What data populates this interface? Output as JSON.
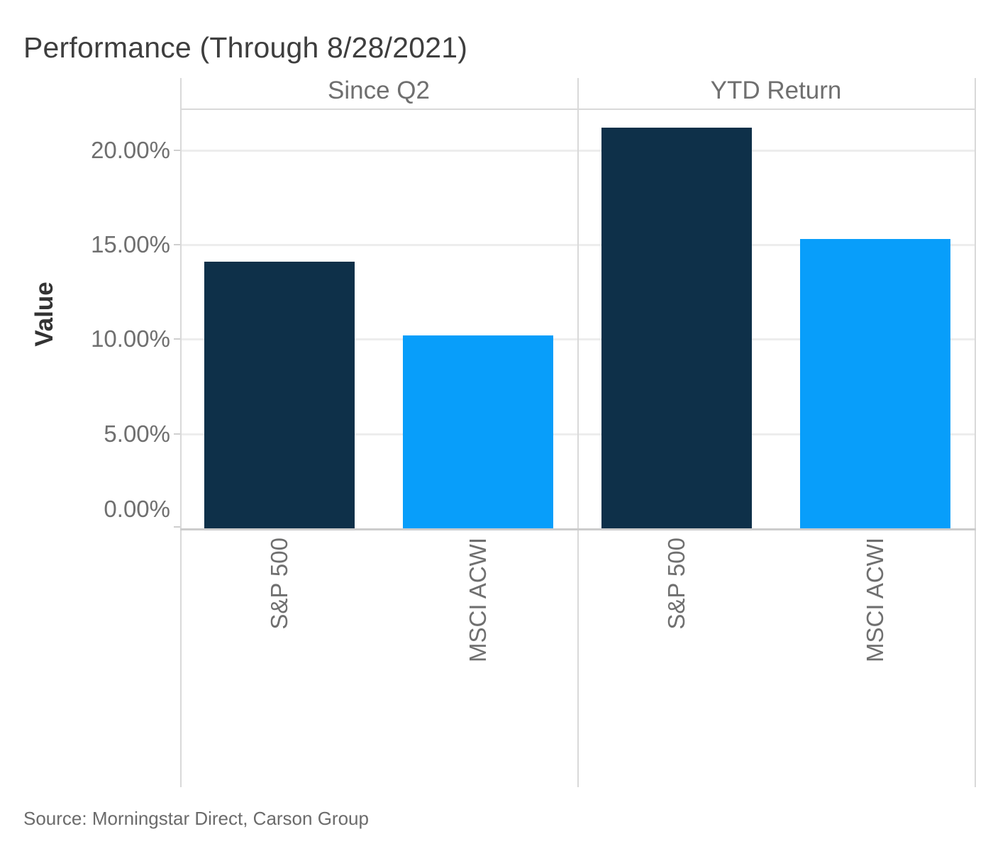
{
  "title": "Performance (Through 8/28/2021)",
  "source": "Source: Morningstar Direct, Carson Group",
  "chart_data": {
    "type": "bar",
    "title": "Performance (Through 8/28/2021)",
    "subtitle": "",
    "xlabel": "",
    "ylabel": "Value",
    "ylim": [
      0,
      22.1
    ],
    "grid": true,
    "legend_position": "none",
    "value_format": "percent",
    "yticks": [
      {
        "label": "0.00%",
        "value": 0
      },
      {
        "label": "5.00%",
        "value": 5
      },
      {
        "label": "10.00%",
        "value": 10
      },
      {
        "label": "15.00%",
        "value": 15
      },
      {
        "label": "20.00%",
        "value": 20
      }
    ],
    "panels": [
      {
        "label": "Since Q2",
        "categories": [
          "S&P 500",
          "MSCI ACWI"
        ],
        "values": [
          14.1,
          10.2
        ]
      },
      {
        "label": "YTD Return",
        "categories": [
          "S&P 500",
          "MSCI ACWI"
        ],
        "values": [
          21.2,
          15.3
        ]
      }
    ],
    "series": [
      {
        "name": "S&P 500",
        "color": "#0e3049"
      },
      {
        "name": "MSCI ACWI",
        "color": "#089efa"
      }
    ],
    "source": "Source: Morningstar Direct, Carson Group"
  },
  "colors": {
    "bar_dark_navy": "#0e3049",
    "bar_light_blue": "#089efa",
    "gridline": "#ededed",
    "border": "#d9d9d9",
    "text_muted": "#6f6f6f",
    "text_dark": "#333333"
  }
}
